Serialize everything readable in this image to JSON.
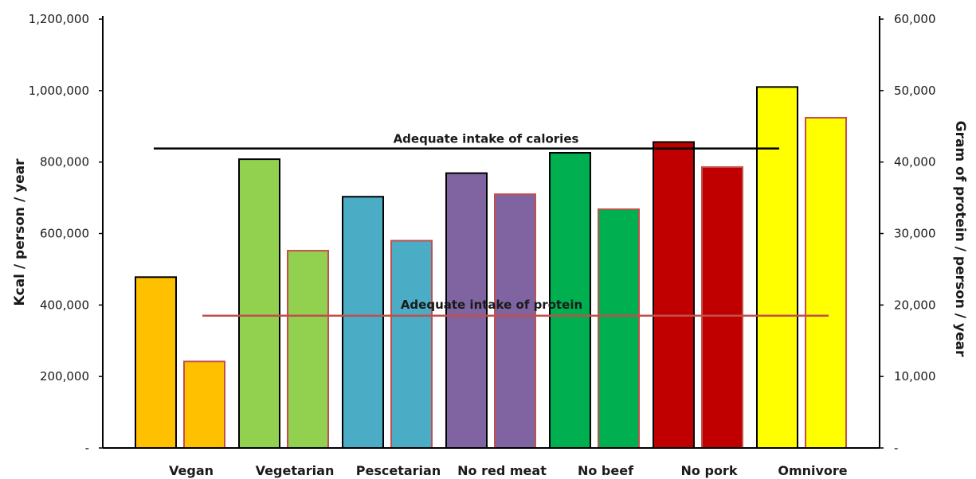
{
  "chart_data": {
    "type": "bar",
    "categories": [
      "Vegan",
      "Vegetarian",
      "Pescetarian",
      "No red meat",
      "No beef",
      "No pork",
      "Omnivore"
    ],
    "colors": [
      "#FFC000",
      "#92D050",
      "#4BACC6",
      "#8064A2",
      "#00B050",
      "#C00000",
      "#FFFF00"
    ],
    "series": [
      {
        "axis": "left",
        "outline": "#000000",
        "values": [
          478000,
          808000,
          703000,
          769000,
          826000,
          856000,
          1010000
        ]
      },
      {
        "axis": "right",
        "outline": "#C0504D",
        "values": [
          12100,
          27600,
          29000,
          35500,
          33400,
          39300,
          46200
        ]
      }
    ],
    "ylabel_left": "Kcal / person / year",
    "ylabel_right": "Gram of protein / person / year",
    "ylim_left": [
      0,
      1200000
    ],
    "ylim_right": [
      0,
      60000
    ],
    "yticks_left": [
      "-",
      "200,000",
      "400,000",
      "600,000",
      "800,000",
      "1,000,000",
      "1,200,000"
    ],
    "yticks_right": [
      "-",
      "10,000",
      "20,000",
      "30,000",
      "40,000",
      "50,000",
      "60,000"
    ],
    "reference_lines": [
      {
        "label": "Adequate intake of calories",
        "value": 838000,
        "axis": "left",
        "color": "#000000"
      },
      {
        "label": "Adequate intake of protein",
        "value": 18500,
        "axis": "right",
        "color": "#C0504D"
      }
    ],
    "grid": false,
    "legend": "none"
  }
}
